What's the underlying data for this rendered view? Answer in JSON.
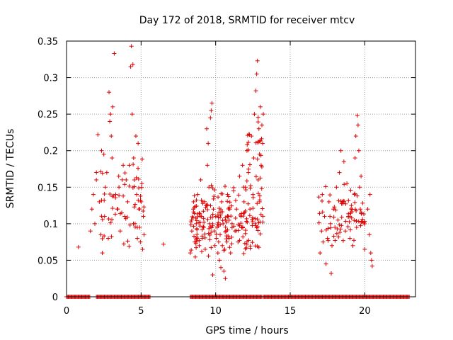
{
  "chart_data": {
    "type": "scatter",
    "title": "Day 172 of 2018, SRMTID for receiver mtcv",
    "xlabel": "GPS time / hours",
    "ylabel": "SRMTID / TECUs",
    "xlim": [
      0,
      23.4
    ],
    "ylim": [
      0,
      0.35
    ],
    "xticks": [
      0,
      5,
      10,
      15,
      20
    ],
    "xtick_labels": [
      "0",
      "5",
      "10",
      "15",
      "20"
    ],
    "yticks": [
      0,
      0.05,
      0.1,
      0.15,
      0.2,
      0.25,
      0.3,
      0.35
    ],
    "ytick_labels": [
      "0",
      "0.05",
      "0.1",
      "0.15",
      "0.2",
      "0.25",
      "0.3",
      "0.35"
    ],
    "grid": true,
    "marker": "plus",
    "color": "#e00000",
    "series": [
      {
        "name": "SRMTID",
        "points": [
          [
            0.8,
            0.068
          ],
          [
            1.6,
            0.09
          ],
          [
            1.7,
            0.12
          ],
          [
            1.8,
            0.14
          ],
          [
            1.9,
            0.1
          ],
          [
            2.0,
            0.16
          ],
          [
            2.1,
            0.222
          ],
          [
            2.2,
            0.13
          ],
          [
            2.3,
            0.085
          ],
          [
            2.35,
            0.2
          ],
          [
            2.4,
            0.06
          ],
          [
            2.5,
            0.195
          ],
          [
            2.55,
            0.11
          ],
          [
            2.6,
            0.15
          ],
          [
            2.7,
            0.17
          ],
          [
            2.8,
            0.08
          ],
          [
            2.85,
            0.28
          ],
          [
            2.9,
            0.24
          ],
          [
            2.95,
            0.25
          ],
          [
            3.0,
            0.22
          ],
          [
            3.05,
            0.19
          ],
          [
            3.1,
            0.26
          ],
          [
            3.2,
            0.333
          ],
          [
            3.3,
            0.14
          ],
          [
            3.4,
            0.12
          ],
          [
            3.5,
            0.165
          ],
          [
            3.6,
            0.09
          ],
          [
            3.7,
            0.115
          ],
          [
            3.8,
            0.18
          ],
          [
            3.9,
            0.11
          ],
          [
            4.0,
            0.16
          ],
          [
            4.1,
            0.13
          ],
          [
            4.2,
            0.18
          ],
          [
            4.3,
            0.315
          ],
          [
            4.35,
            0.343
          ],
          [
            4.4,
            0.25
          ],
          [
            4.45,
            0.318
          ],
          [
            4.5,
            0.19
          ],
          [
            4.55,
            0.16
          ],
          [
            4.6,
            0.1
          ],
          [
            4.65,
            0.22
          ],
          [
            4.7,
            0.14
          ],
          [
            4.75,
            0.08
          ],
          [
            4.8,
            0.21
          ],
          [
            4.85,
            0.12
          ],
          [
            4.9,
            0.095
          ],
          [
            4.95,
            0.075
          ],
          [
            5.0,
            0.13
          ],
          [
            5.05,
            0.155
          ],
          [
            5.1,
            0.065
          ],
          [
            5.15,
            0.11
          ],
          [
            5.2,
            0.085
          ],
          [
            6.5,
            0.072
          ],
          [
            8.3,
            0.06
          ],
          [
            8.4,
            0.09
          ],
          [
            8.5,
            0.12
          ],
          [
            8.6,
            0.075
          ],
          [
            8.7,
            0.1
          ],
          [
            8.8,
            0.14
          ],
          [
            8.9,
            0.07
          ],
          [
            9.0,
            0.16
          ],
          [
            9.05,
            0.11
          ],
          [
            9.1,
            0.08
          ],
          [
            9.15,
            0.13
          ],
          [
            9.2,
            0.095
          ],
          [
            9.3,
            0.065
          ],
          [
            9.35,
            0.125
          ],
          [
            9.4,
            0.23
          ],
          [
            9.45,
            0.18
          ],
          [
            9.5,
            0.21
          ],
          [
            9.55,
            0.15
          ],
          [
            9.6,
            0.1
          ],
          [
            9.65,
            0.245
          ],
          [
            9.7,
            0.255
          ],
          [
            9.75,
            0.265
          ],
          [
            9.8,
            0.03
          ],
          [
            9.85,
            0.12
          ],
          [
            9.9,
            0.09
          ],
          [
            9.95,
            0.07
          ],
          [
            10.0,
            0.11
          ],
          [
            10.05,
            0.08
          ],
          [
            10.1,
            0.095
          ],
          [
            10.15,
            0.06
          ],
          [
            10.2,
            0.075
          ],
          [
            10.25,
            0.05
          ],
          [
            10.3,
            0.085
          ],
          [
            10.35,
            0.04
          ],
          [
            10.4,
            0.13
          ],
          [
            10.45,
            0.07
          ],
          [
            10.5,
            0.1
          ],
          [
            10.55,
            0.035
          ],
          [
            10.6,
            0.065
          ],
          [
            10.65,
            0.025
          ],
          [
            10.7,
            0.09
          ],
          [
            10.75,
            0.075
          ],
          [
            10.8,
            0.14
          ],
          [
            10.85,
            0.11
          ],
          [
            10.9,
            0.08
          ],
          [
            10.95,
            0.12
          ],
          [
            11.0,
            0.06
          ],
          [
            11.1,
            0.1
          ],
          [
            11.2,
            0.145
          ],
          [
            11.3,
            0.09
          ],
          [
            11.4,
            0.12
          ],
          [
            11.5,
            0.075
          ],
          [
            11.6,
            0.165
          ],
          [
            11.7,
            0.11
          ],
          [
            11.8,
            0.18
          ],
          [
            11.9,
            0.13
          ],
          [
            12.0,
            0.15
          ],
          [
            12.1,
            0.2
          ],
          [
            12.2,
            0.17
          ],
          [
            12.3,
            0.12
          ],
          [
            12.4,
            0.22
          ],
          [
            12.5,
            0.14
          ],
          [
            12.55,
            0.19
          ],
          [
            12.6,
            0.25
          ],
          [
            12.65,
            0.1
          ],
          [
            12.7,
            0.282
          ],
          [
            12.75,
            0.305
          ],
          [
            12.8,
            0.323
          ],
          [
            12.85,
            0.16
          ],
          [
            12.9,
            0.23
          ],
          [
            12.95,
            0.13
          ],
          [
            13.0,
            0.26
          ],
          [
            13.05,
            0.18
          ],
          [
            13.1,
            0.235
          ],
          [
            13.15,
            0.21
          ],
          [
            17.0,
            0.06
          ],
          [
            17.1,
            0.09
          ],
          [
            17.15,
            0.14
          ],
          [
            17.2,
            0.075
          ],
          [
            17.3,
            0.11
          ],
          [
            17.4,
            0.045
          ],
          [
            17.5,
            0.08
          ],
          [
            17.6,
            0.13
          ],
          [
            17.7,
            0.1
          ],
          [
            17.75,
            0.032
          ],
          [
            17.8,
            0.07
          ],
          [
            17.9,
            0.12
          ],
          [
            18.0,
            0.095
          ],
          [
            18.1,
            0.15
          ],
          [
            18.2,
            0.105
          ],
          [
            18.3,
            0.17
          ],
          [
            18.4,
            0.2
          ],
          [
            18.5,
            0.13
          ],
          [
            18.6,
            0.185
          ],
          [
            18.7,
            0.09
          ],
          [
            18.8,
            0.155
          ],
          [
            18.9,
            0.11
          ],
          [
            19.0,
            0.08
          ],
          [
            19.1,
            0.125
          ],
          [
            19.2,
            0.07
          ],
          [
            19.3,
            0.14
          ],
          [
            19.35,
            0.19
          ],
          [
            19.4,
            0.22
          ],
          [
            19.45,
            0.095
          ],
          [
            19.5,
            0.248
          ],
          [
            19.55,
            0.235
          ],
          [
            19.6,
            0.2
          ],
          [
            19.65,
            0.15
          ],
          [
            19.7,
            0.12
          ],
          [
            19.75,
            0.165
          ],
          [
            20.0,
            0.065
          ],
          [
            20.2,
            0.12
          ],
          [
            20.3,
            0.085
          ],
          [
            20.35,
            0.14
          ],
          [
            20.4,
            0.06
          ],
          [
            20.45,
            0.05
          ],
          [
            20.5,
            0.042
          ]
        ],
        "clusters": [
          {
            "x_range": [
              2.0,
              5.2
            ],
            "y_range": [
              0.055,
              0.2
            ],
            "count": 55
          },
          {
            "x_range": [
              8.3,
              13.2
            ],
            "y_range": [
              0.05,
              0.16
            ],
            "count": 180
          },
          {
            "x_range": [
              12.0,
              13.2
            ],
            "y_range": [
              0.12,
              0.26
            ],
            "count": 30
          },
          {
            "x_range": [
              16.9,
              20.0
            ],
            "y_range": [
              0.06,
              0.16
            ],
            "count": 70
          }
        ],
        "zero_coverage": [
          [
            0.0,
            1.6
          ],
          [
            2.0,
            5.6
          ],
          [
            8.3,
            13.1
          ],
          [
            13.2,
            23.0
          ]
        ]
      }
    ]
  }
}
